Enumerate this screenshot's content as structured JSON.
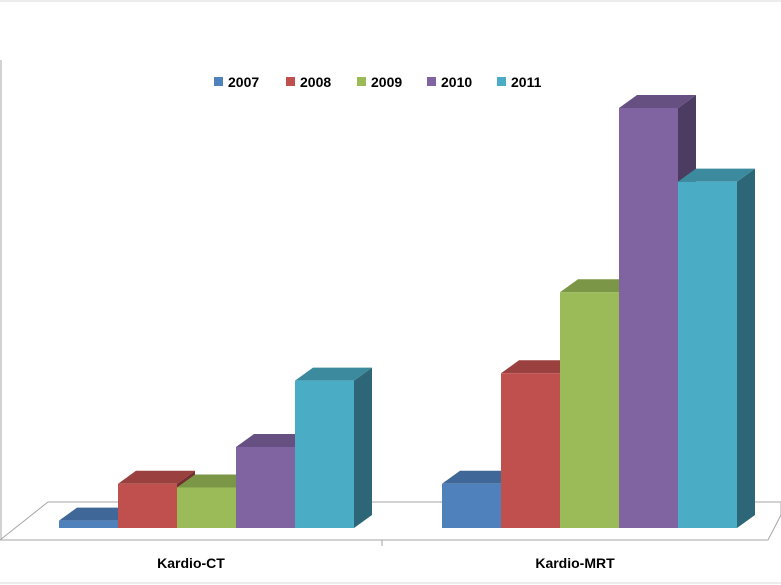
{
  "chart_data": {
    "type": "bar",
    "style": "3d-clustered-column",
    "categories": [
      "Kardio-CT",
      "Kardio-MRT"
    ],
    "series": [
      {
        "name": "2007",
        "color": "#4f81bd",
        "values": [
          1,
          6
        ]
      },
      {
        "name": "2008",
        "color": "#c0504d",
        "values": [
          6,
          21
        ]
      },
      {
        "name": "2009",
        "color": "#9bbb59",
        "values": [
          5.5,
          32
        ]
      },
      {
        "name": "2010",
        "color": "#8064a2",
        "values": [
          11,
          57
        ]
      },
      {
        "name": "2011",
        "color": "#4bacc6",
        "values": [
          20,
          47
        ]
      }
    ],
    "ylim": [
      0,
      57
    ],
    "legend": "top-center",
    "grid": false
  }
}
